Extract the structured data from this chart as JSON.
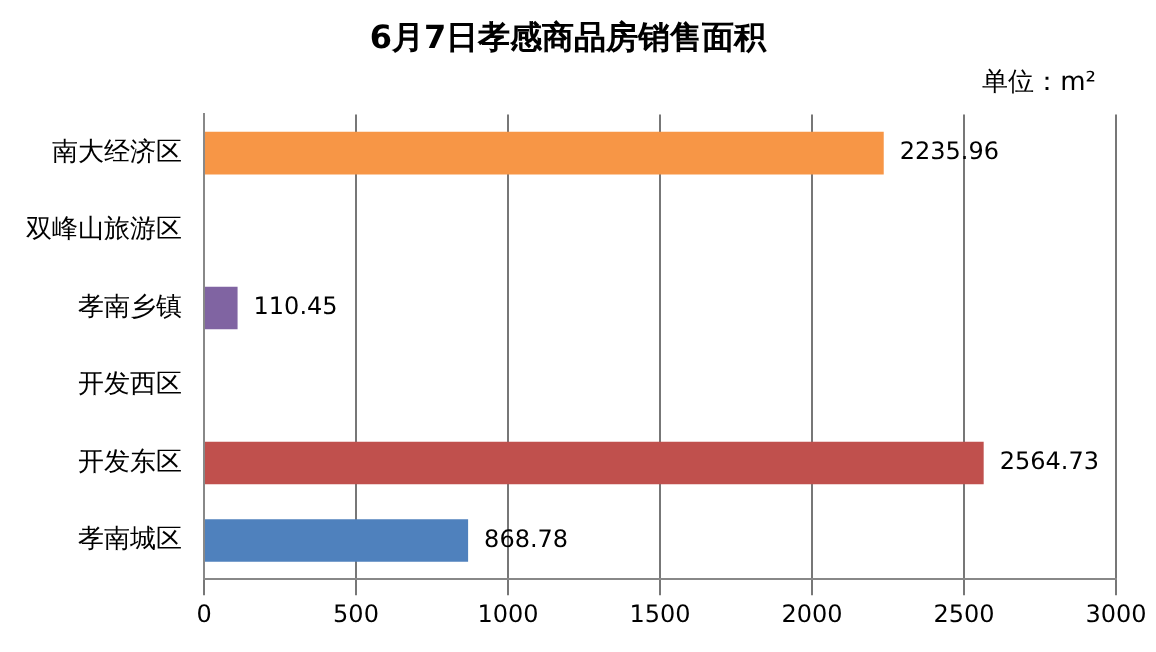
{
  "chart_data": {
    "type": "bar",
    "orientation": "horizontal",
    "title": "6月7日孝感商品房销售面积",
    "annotations": [
      "单位：m²"
    ],
    "categories": [
      "南大经济区",
      "双峰山旅游区",
      "孝南乡镇",
      "开发西区",
      "开发东区",
      "孝南城区"
    ],
    "values": [
      2235.96,
      null,
      110.45,
      null,
      2564.73,
      868.78
    ],
    "colors": [
      "#f79646",
      "#9bbb59",
      "#8064a2",
      "#4bacc6",
      "#c0504d",
      "#4f81bd"
    ],
    "xlim": [
      0,
      3000
    ],
    "xticks": [
      0,
      500,
      1000,
      1500,
      2000,
      2500,
      3000
    ],
    "grid": "x",
    "data_labels": true,
    "legend": false
  }
}
